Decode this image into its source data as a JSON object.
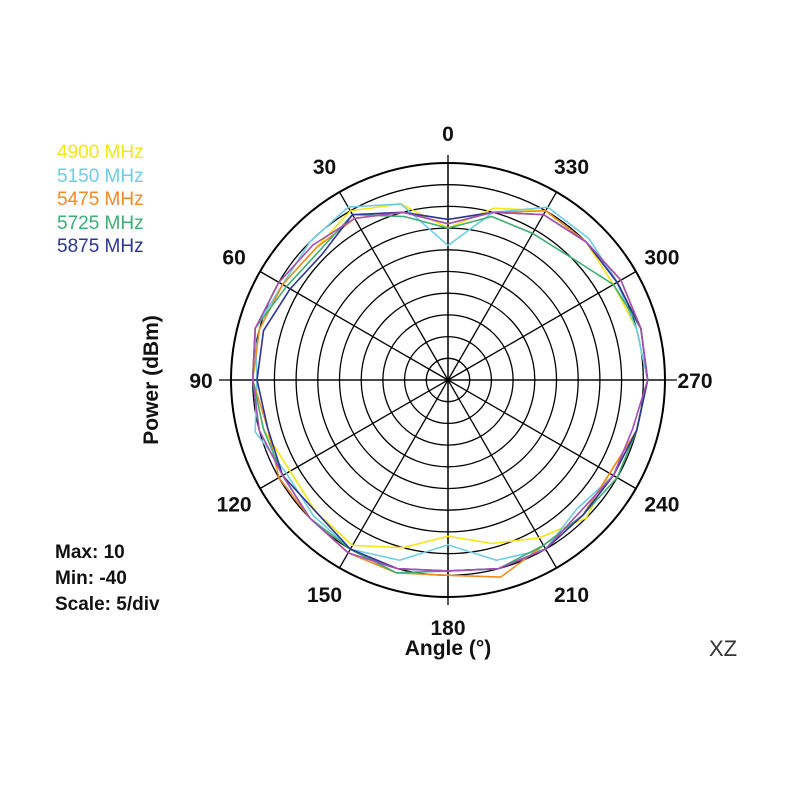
{
  "chart_data": {
    "type": "polar",
    "plot_name": "XZ",
    "xlabel": "Angle  (°)",
    "ylabel": "Power  (dBm)",
    "angle_ticks": [
      "0",
      "30",
      "60",
      "90",
      "120",
      "150",
      "180",
      "210",
      "240",
      "270",
      "300",
      "330"
    ],
    "stats": [
      "Max: 10",
      "Min: -40",
      "Scale: 5/div"
    ],
    "rmin": -40,
    "rmax": 10,
    "rstep": 5,
    "angles": [
      0,
      15,
      30,
      45,
      60,
      75,
      90,
      105,
      120,
      135,
      150,
      165,
      180,
      195,
      210,
      225,
      240,
      255,
      270,
      285,
      300,
      315,
      330,
      345
    ],
    "series": [
      {
        "name": "4900 MHz",
        "color": "#f5e615",
        "values": [
          -5,
          2,
          5,
          3,
          4,
          6,
          5,
          4,
          2,
          3,
          4,
          0,
          -4,
          -1,
          2,
          5,
          3,
          5,
          6,
          5,
          4,
          5,
          5,
          1
        ]
      },
      {
        "name": "5150 MHz",
        "color": "#6ccde8",
        "values": [
          -9,
          2,
          6,
          5,
          4,
          6,
          4,
          6,
          3,
          4,
          5,
          3,
          -2,
          3,
          5,
          2,
          4,
          5,
          6,
          5,
          5,
          6,
          6,
          0
        ]
      },
      {
        "name": "5475 MHz",
        "color": "#f08a24",
        "values": [
          -4,
          0,
          3,
          3,
          4,
          5,
          5,
          3,
          5,
          5,
          6,
          6,
          5,
          7,
          4,
          4,
          3,
          5,
          6,
          6,
          6,
          5,
          5,
          0
        ]
      },
      {
        "name": "5725 MHz",
        "color": "#3daf73",
        "values": [
          -5,
          -1,
          4,
          2,
          3,
          6,
          5,
          4,
          4,
          5,
          5,
          6,
          4,
          5,
          4,
          4,
          5,
          5,
          6,
          6,
          4,
          0,
          -1,
          -1
        ]
      },
      {
        "name": "5875 MHz",
        "color": "#2b3594",
        "values": [
          -3,
          0,
          4,
          1,
          2,
          4,
          4,
          3,
          4,
          3,
          5,
          5,
          4,
          5,
          5,
          4,
          4,
          5,
          6,
          6,
          5,
          5,
          4,
          0
        ]
      },
      {
        "name": "",
        "color": "#a64fb5",
        "values": [
          -4,
          0,
          3,
          4,
          5,
          6,
          5,
          5,
          4,
          5,
          6,
          5,
          4,
          5,
          5,
          3,
          4,
          4,
          6,
          6,
          6,
          5,
          4,
          0
        ]
      }
    ]
  }
}
